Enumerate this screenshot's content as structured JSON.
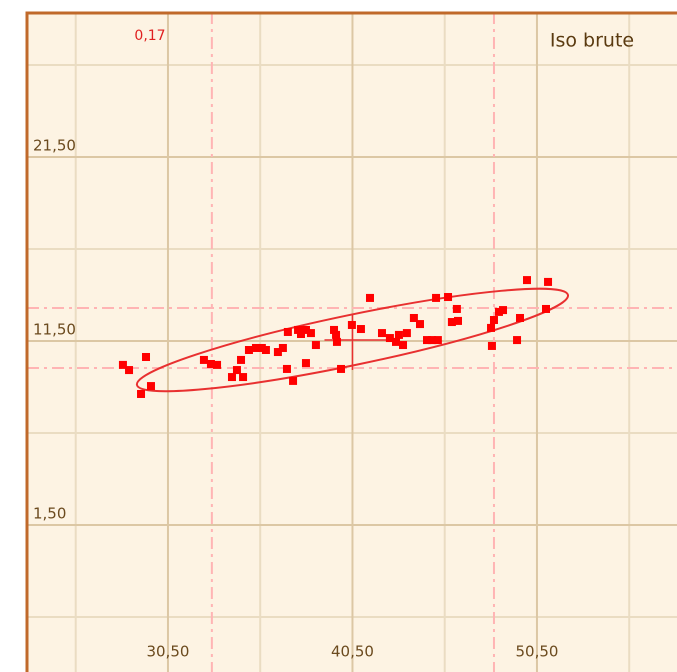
{
  "chart_data": {
    "type": "scatter",
    "title": "Iso brute",
    "annotations": [
      "0,17"
    ],
    "xlim": [
      22.86,
      58.09
    ],
    "ylim": [
      -6.49,
      29.38
    ],
    "xticks": [
      {
        "value": 30.5,
        "label": "30,50"
      },
      {
        "value": 40.5,
        "label": "40,50"
      },
      {
        "value": 50.5,
        "label": "50,50"
      }
    ],
    "yticks": [
      {
        "value": 1.5,
        "label": "1,50"
      },
      {
        "value": 11.5,
        "label": "11,50"
      },
      {
        "value": 21.5,
        "label": "21,50"
      }
    ],
    "xminor": [
      25.5,
      35.5,
      45.5,
      55.5
    ],
    "yminor": [
      -3.5,
      6.5,
      16.5,
      26.5
    ],
    "grid": true,
    "ref_x": [
      32.88,
      48.17
    ],
    "ref_y": [
      13.29,
      10.03
    ],
    "ellipse": {
      "major": [
        [
          28.82,
          9.11
        ],
        [
          52.18,
          14.0
        ]
      ],
      "minor_end": [
        40.77,
        10.22
      ]
    },
    "color": "#ff0000",
    "x": [
      28.06,
      28.39,
      29.31,
      29.04,
      29.58,
      32.45,
      32.83,
      33.16,
      33.97,
      34.24,
      34.46,
      34.57,
      34.89,
      35.27,
      35.59,
      35.81,
      36.46,
      36.73,
      37.0,
      36.95,
      37.28,
      37.55,
      37.71,
      37.98,
      38.25,
      37.98,
      38.52,
      39.5,
      39.61,
      39.88,
      40.47,
      40.96,
      41.45,
      42.1,
      42.53,
      42.86,
      43.02,
      43.24,
      43.45,
      43.83,
      44.16,
      44.54,
      44.81,
      45.13,
      45.03,
      45.68,
      45.89,
      46.22,
      46.16,
      48.06,
      48.01,
      48.17,
      48.44,
      48.66,
      49.42,
      49.58,
      49.96,
      51.1,
      50.99,
      39.66
    ],
    "values": [
      10.2,
      9.92,
      10.63,
      8.62,
      9.05,
      10.47,
      10.25,
      10.2,
      9.54,
      9.92,
      10.47,
      9.54,
      11.01,
      11.12,
      11.12,
      11.01,
      10.9,
      11.12,
      11.99,
      9.98,
      9.33,
      12.1,
      11.88,
      12.1,
      11.93,
      10.3,
      11.28,
      12.1,
      11.83,
      9.98,
      12.37,
      12.15,
      13.84,
      11.93,
      11.66,
      11.45,
      11.83,
      11.28,
      11.93,
      12.75,
      12.42,
      11.55,
      11.55,
      11.55,
      13.84,
      13.89,
      12.53,
      12.59,
      13.24,
      11.23,
      12.21,
      12.64,
      13.08,
      13.18,
      11.55,
      12.75,
      14.81,
      14.71,
      13.24,
      11.45
    ]
  }
}
